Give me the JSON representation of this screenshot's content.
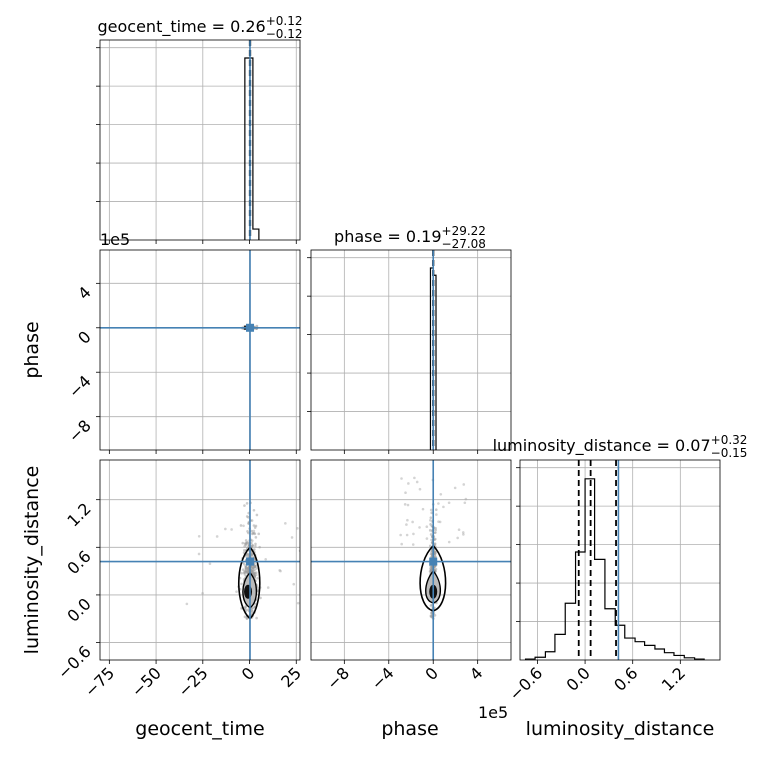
{
  "chart_data": {
    "type": "corner",
    "parameters": [
      {
        "name": "geocent_time",
        "xlabel": "geocent_time",
        "median": 0.26,
        "plus": "+0.12",
        "minus": "−0.12",
        "title_main": "geocent_time = 0.26",
        "range": [
          -80,
          27
        ],
        "ticks": [
          -75,
          -50,
          -25,
          0,
          25
        ],
        "tick_labels": [
          "−75",
          "−50",
          "−25",
          "0",
          "25"
        ],
        "truth": 0.26
      },
      {
        "name": "phase",
        "xlabel": "phase",
        "ylabel": "phase",
        "median": 0.19,
        "plus": "+29.22",
        "minus": "−27.08",
        "title_main": "phase = 0.19",
        "offset": "1e5",
        "range": [
          -11,
          7
        ],
        "ticks": [
          -8,
          -4,
          0,
          4
        ],
        "tick_labels": [
          "−8",
          "−4",
          "0",
          "4"
        ],
        "truth": 0.0
      },
      {
        "name": "luminosity_distance",
        "xlabel": "luminosity_distance",
        "ylabel": "luminosity_distance",
        "median": 0.07,
        "plus": "+0.32",
        "minus": "−0.15",
        "title_main": "luminosity_distance = 0.07",
        "range": [
          -0.82,
          1.7
        ],
        "ticks": [
          -0.6,
          0.0,
          0.6,
          1.2
        ],
        "tick_labels": [
          "−0.6",
          "0.0",
          "0.6",
          "1.2"
        ],
        "truth": 0.42
      }
    ],
    "diagonal": {
      "geocent_time": {
        "bins": [
          [
            -2.5,
            0,
            1.0
          ],
          [
            0,
            1.8,
            1.0
          ],
          [
            1.8,
            5,
            0.06
          ]
        ],
        "quantiles": [
          0.14,
          0.26,
          0.38
        ]
      },
      "phase": {
        "bins": [
          [
            -0.25,
            0,
            1.0
          ],
          [
            0,
            0.25,
            0.96
          ]
        ],
        "quantiles": [
          0.0,
          0.0,
          0.0
        ]
      },
      "luminosity_distance": {
        "edges": [
          -0.75,
          -0.63,
          -0.5,
          -0.38,
          -0.25,
          -0.12,
          0.0,
          0.12,
          0.25,
          0.38,
          0.5,
          0.63,
          0.75,
          0.88,
          1.0,
          1.12,
          1.25,
          1.38,
          1.5
        ],
        "heights": [
          0.005,
          0.015,
          0.045,
          0.14,
          0.31,
          0.59,
          0.99,
          0.55,
          0.28,
          0.19,
          0.12,
          0.1,
          0.08,
          0.06,
          0.04,
          0.025,
          0.012,
          0.005
        ],
        "quantiles": [
          -0.08,
          0.07,
          0.39
        ]
      }
    }
  }
}
